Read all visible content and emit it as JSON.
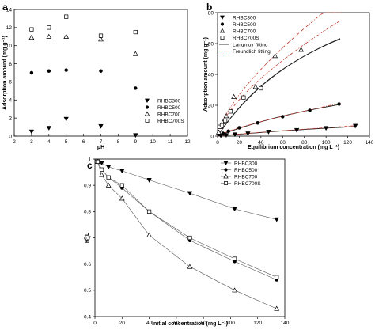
{
  "chart_data": [
    {
      "panel": "a",
      "type": "scatter",
      "xlabel": "pH",
      "ylabel": "Adsorption amount (mg g⁻¹)",
      "xlim": [
        2,
        12
      ],
      "ylim": [
        0,
        14
      ],
      "xticks": [
        2,
        3,
        4,
        5,
        6,
        7,
        8,
        9,
        10,
        11,
        12
      ],
      "yticks": [
        0,
        2,
        4,
        6,
        8,
        10,
        12,
        14
      ],
      "legend_position": "lower-right",
      "series": [
        {
          "name": "RHBC300",
          "marker": "triangle-down",
          "x": [
            3,
            4,
            5,
            7,
            9
          ],
          "y": [
            0.5,
            0.9,
            1.9,
            1.1,
            0.1
          ]
        },
        {
          "name": "RHBC500",
          "marker": "circle",
          "x": [
            3,
            4,
            5,
            7,
            9
          ],
          "y": [
            7.0,
            7.2,
            7.3,
            7.2,
            5.3
          ]
        },
        {
          "name": "RHBC700",
          "marker": "triangle-up-open",
          "x": [
            3,
            4,
            5,
            7,
            9
          ],
          "y": [
            10.9,
            11.0,
            11.0,
            10.7,
            9.1
          ]
        },
        {
          "name": "RHBC700S",
          "marker": "square-open",
          "x": [
            3,
            4,
            5,
            7,
            9
          ],
          "y": [
            11.8,
            12.0,
            13.2,
            11.1,
            11.5
          ]
        }
      ]
    },
    {
      "panel": "b",
      "type": "scatter",
      "xlabel": "Equilibrium concentration (mg L⁻¹)",
      "ylabel": "Adsorption amount (mg g⁻¹)",
      "xlim": [
        0,
        140
      ],
      "ylim": [
        0,
        80
      ],
      "xticks": [
        0,
        20,
        40,
        60,
        80,
        100,
        120,
        140
      ],
      "yticks": [
        0,
        20,
        40,
        60,
        80
      ],
      "legend_position": "top-left",
      "series": [
        {
          "name": "RHBC300",
          "marker": "triangle-down",
          "x": [
            3,
            8,
            16,
            28,
            47,
            73,
            100,
            127
          ],
          "y": [
            0.3,
            0.6,
            1.1,
            1.7,
            2.8,
            3.9,
            5.2,
            6.6
          ]
        },
        {
          "name": "RHBC500",
          "marker": "circle",
          "x": [
            2,
            5,
            10,
            20,
            37,
            60,
            85,
            112
          ],
          "y": [
            1.0,
            1.8,
            3.2,
            5.4,
            8.6,
            12.6,
            16.7,
            20.8
          ]
        },
        {
          "name": "RHBC700",
          "marker": "triangle-up-open",
          "x": [
            1,
            3,
            5,
            8,
            15,
            35,
            53,
            77
          ],
          "y": [
            2.5,
            6.0,
            9.0,
            13.0,
            25.5,
            32.0,
            52.0,
            56.0
          ]
        },
        {
          "name": "RHBC700S",
          "marker": "square-open",
          "x": [
            2,
            4,
            7,
            12,
            24,
            40
          ],
          "y": [
            6.0,
            7.0,
            10.0,
            16.0,
            25.0,
            31.0
          ]
        }
      ],
      "fit_legend": [
        "Langmuir fitting",
        "Freundlich fitting"
      ]
    },
    {
      "panel": "c",
      "type": "line",
      "xlabel": "Initial concentration (mg L⁻¹)",
      "ylabel": "R_L",
      "xlim": [
        0,
        140
      ],
      "ylim": [
        0.4,
        1.0
      ],
      "xticks": [
        0,
        20,
        40,
        60,
        80,
        100,
        120,
        140
      ],
      "yticks": [
        0.4,
        0.5,
        0.6,
        0.7,
        0.8,
        0.9,
        1.0
      ],
      "legend_position": "top-right",
      "series": [
        {
          "name": "RHBC300",
          "marker": "triangle-down",
          "x": [
            2,
            5,
            10,
            20,
            40,
            70,
            103,
            134
          ],
          "y": [
            0.99,
            0.985,
            0.97,
            0.955,
            0.92,
            0.87,
            0.81,
            0.77
          ]
        },
        {
          "name": "RHBC500",
          "marker": "circle",
          "x": [
            2,
            5,
            10,
            20,
            40,
            70,
            103,
            134
          ],
          "y": [
            0.99,
            0.96,
            0.93,
            0.89,
            0.8,
            0.69,
            0.61,
            0.54
          ]
        },
        {
          "name": "RHBC700",
          "marker": "triangle-up-open",
          "x": [
            2,
            5,
            10,
            20,
            40,
            70,
            103,
            134
          ],
          "y": [
            0.99,
            0.94,
            0.9,
            0.85,
            0.71,
            0.59,
            0.5,
            0.43
          ]
        },
        {
          "name": "RHBC700S",
          "marker": "square-open",
          "x": [
            2,
            5,
            10,
            20,
            40,
            70,
            103,
            134
          ],
          "y": [
            0.99,
            0.96,
            0.93,
            0.9,
            0.8,
            0.7,
            0.62,
            0.55
          ]
        }
      ]
    }
  ]
}
